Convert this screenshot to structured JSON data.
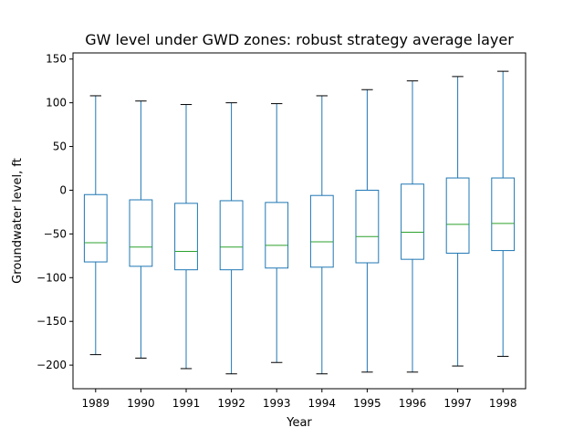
{
  "chart_data": {
    "type": "box",
    "title": "GW level under GWD zones: robust strategy average layer",
    "xlabel": "Year",
    "ylabel": "Groundwater level, ft",
    "ylim": [
      -227,
      157
    ],
    "yticks": [
      150,
      100,
      50,
      0,
      -50,
      -100,
      -150,
      -200
    ],
    "ytick_labels": [
      "150",
      "100",
      "50",
      "0",
      "−50",
      "−100",
      "−150",
      "−200"
    ],
    "grid": false,
    "legend": "none",
    "colors": {
      "box": "#1f77b4",
      "median": "#2ca02c",
      "cap": "#000000",
      "axes": "#000000"
    },
    "categories": [
      "1989",
      "1990",
      "1991",
      "1992",
      "1993",
      "1994",
      "1995",
      "1996",
      "1997",
      "1998"
    ],
    "boxes": [
      {
        "year": "1989",
        "min": -188,
        "q1": -82,
        "median": -60,
        "q3": -5,
        "max": 108
      },
      {
        "year": "1990",
        "min": -192,
        "q1": -87,
        "median": -65,
        "q3": -11,
        "max": 102
      },
      {
        "year": "1991",
        "min": -204,
        "q1": -91,
        "median": -70,
        "q3": -15,
        "max": 98
      },
      {
        "year": "1992",
        "min": -210,
        "q1": -91,
        "median": -65,
        "q3": -12,
        "max": 100
      },
      {
        "year": "1993",
        "min": -197,
        "q1": -89,
        "median": -63,
        "q3": -14,
        "max": 99
      },
      {
        "year": "1994",
        "min": -210,
        "q1": -88,
        "median": -59,
        "q3": -6,
        "max": 108
      },
      {
        "year": "1995",
        "min": -208,
        "q1": -83,
        "median": -53,
        "q3": 0,
        "max": 115
      },
      {
        "year": "1996",
        "min": -208,
        "q1": -79,
        "median": -48,
        "q3": 7,
        "max": 125
      },
      {
        "year": "1997",
        "min": -201,
        "q1": -72,
        "median": -39,
        "q3": 14,
        "max": 130
      },
      {
        "year": "1998",
        "min": -190,
        "q1": -69,
        "median": -38,
        "q3": 14,
        "max": 136
      }
    ]
  }
}
